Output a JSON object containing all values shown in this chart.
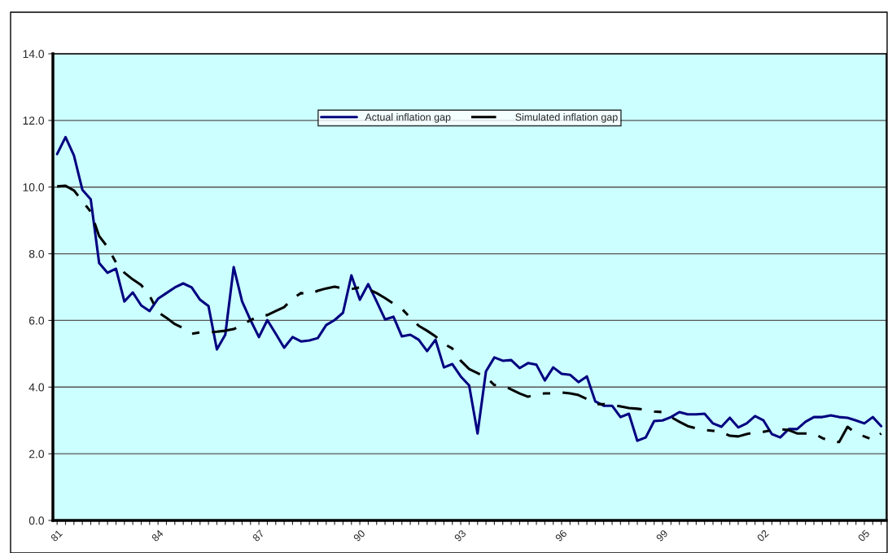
{
  "chart_data": {
    "type": "line",
    "categories": [
      "81",
      null,
      null,
      null,
      null,
      null,
      null,
      null,
      null,
      null,
      null,
      null,
      "84",
      null,
      null,
      null,
      null,
      null,
      null,
      null,
      null,
      null,
      null,
      null,
      "87",
      null,
      null,
      null,
      null,
      null,
      null,
      null,
      null,
      null,
      null,
      null,
      "90",
      null,
      null,
      null,
      null,
      null,
      null,
      null,
      null,
      null,
      null,
      null,
      "93",
      null,
      null,
      null,
      null,
      null,
      null,
      null,
      null,
      null,
      null,
      null,
      "96",
      null,
      null,
      null,
      null,
      null,
      null,
      null,
      null,
      null,
      null,
      null,
      "99",
      null,
      null,
      null,
      null,
      null,
      null,
      null,
      null,
      null,
      null,
      null,
      "02",
      null,
      null,
      null,
      null,
      null,
      null,
      null,
      null,
      null,
      null,
      null,
      "05",
      null,
      null
    ],
    "series": [
      {
        "name": "Actual inflation gap",
        "color": "#000080",
        "line_style": "solid",
        "values": [
          10.99,
          11.5,
          10.95,
          9.92,
          9.63,
          7.72,
          7.43,
          7.55,
          6.57,
          6.84,
          6.45,
          6.28,
          6.65,
          6.82,
          6.99,
          7.11,
          6.99,
          6.62,
          6.43,
          5.13,
          5.57,
          7.6,
          6.57,
          6.01,
          5.5,
          6.01,
          5.6,
          5.18,
          5.5,
          5.37,
          5.4,
          5.47,
          5.86,
          6.01,
          6.23,
          7.35,
          6.62,
          7.09,
          6.57,
          6.03,
          6.11,
          5.52,
          5.57,
          5.42,
          5.08,
          5.42,
          4.59,
          4.69,
          4.32,
          4.05,
          2.61,
          4.47,
          4.89,
          4.79,
          4.81,
          4.57,
          4.72,
          4.67,
          4.2,
          4.59,
          4.4,
          4.37,
          4.15,
          4.32,
          3.57,
          3.44,
          3.44,
          3.1,
          3.2,
          2.39,
          2.49,
          2.98,
          3.0,
          3.1,
          3.25,
          3.18,
          3.18,
          3.2,
          2.91,
          2.81,
          3.08,
          2.79,
          2.91,
          3.13,
          3.0,
          2.59,
          2.49,
          2.74,
          2.74,
          2.96,
          3.1,
          3.1,
          3.15,
          3.1,
          3.08,
          3.0,
          2.91,
          3.1,
          2.83
        ]
      },
      {
        "name": "Simulated inflation gap",
        "color": "#000000",
        "line_style": "dashed",
        "values": [
          10.02,
          10.04,
          9.9,
          9.58,
          9.26,
          8.53,
          8.2,
          7.74,
          7.43,
          7.23,
          7.06,
          6.74,
          6.25,
          6.08,
          5.89,
          5.77,
          5.6,
          5.64,
          5.64,
          5.66,
          5.69,
          5.74,
          5.86,
          6.01,
          6.13,
          6.16,
          6.28,
          6.4,
          6.65,
          6.82,
          6.79,
          6.89,
          6.96,
          7.01,
          6.96,
          6.94,
          6.99,
          6.94,
          6.82,
          6.67,
          6.5,
          6.35,
          6.08,
          5.84,
          5.69,
          5.52,
          5.3,
          5.16,
          4.79,
          4.54,
          4.42,
          4.3,
          4.06,
          4.06,
          3.93,
          3.81,
          3.71,
          3.79,
          3.81,
          3.81,
          3.84,
          3.81,
          3.76,
          3.64,
          3.49,
          3.49,
          3.47,
          3.42,
          3.37,
          3.35,
          3.32,
          3.27,
          3.25,
          3.1,
          2.96,
          2.83,
          2.76,
          2.71,
          2.69,
          2.66,
          2.54,
          2.52,
          2.59,
          2.64,
          2.66,
          2.71,
          2.74,
          2.71,
          2.61,
          2.61,
          2.61,
          2.47,
          2.37,
          2.35,
          2.81,
          2.61,
          2.52,
          2.42,
          2.61
        ]
      }
    ],
    "ylim": [
      0,
      14
    ],
    "yticks": [
      {
        "value": 0,
        "label": "0.0"
      },
      {
        "value": 2,
        "label": "2.0"
      },
      {
        "value": 4,
        "label": "4.0"
      },
      {
        "value": 6,
        "label": "6.0"
      },
      {
        "value": 8,
        "label": "8.0"
      },
      {
        "value": 10,
        "label": "10.0"
      },
      {
        "value": 12,
        "label": "12.0"
      },
      {
        "value": 14,
        "label": "14.0"
      }
    ],
    "grid": "y",
    "legend": "top",
    "marker": "none"
  }
}
